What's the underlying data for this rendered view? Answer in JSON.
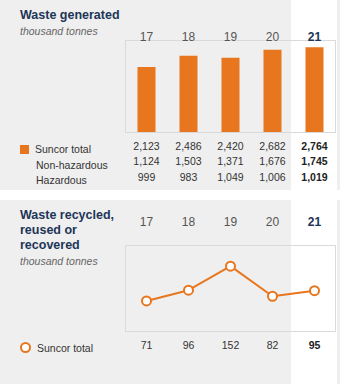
{
  "chart_data": [
    {
      "type": "bar",
      "title": "Waste generated",
      "subtitle": "thousand tonnes",
      "categories": [
        "17",
        "18",
        "19",
        "20",
        "21"
      ],
      "series": [
        {
          "name": "Suncor total",
          "color": "#e8761e",
          "values": [
            2123,
            2486,
            2420,
            2682,
            2764
          ],
          "value_labels": [
            "2,123",
            "2,486",
            "2,420",
            "2,682",
            "2,764"
          ]
        },
        {
          "name": "Non-hazardous",
          "type": "table",
          "values": [
            1124,
            1503,
            1371,
            1676,
            1745
          ],
          "value_labels": [
            "1,124",
            "1,503",
            "1,371",
            "1,676",
            "1,745"
          ]
        },
        {
          "name": "Hazardous",
          "type": "table",
          "values": [
            999,
            983,
            1049,
            1006,
            1019
          ],
          "value_labels": [
            "999",
            "983",
            "1,049",
            "1,006",
            "1,019"
          ]
        }
      ],
      "ylim": [
        0,
        3000
      ],
      "tick_labels": "x",
      "grid": false,
      "data_labels": true,
      "legend": "bottom-left"
    },
    {
      "type": "line",
      "title": "Waste recycled, reused or recovered",
      "subtitle": "thousand tonnes",
      "categories": [
        "17",
        "18",
        "19",
        "20",
        "21"
      ],
      "series": [
        {
          "name": "Suncor total",
          "color": "#e8761e",
          "values": [
            71,
            96,
            152,
            82,
            95
          ],
          "marker": "circle",
          "line_style": "solid"
        }
      ],
      "ylim": [
        0,
        200
      ],
      "tick_labels": "x",
      "grid": false,
      "data_labels": true,
      "legend": "bottom-left"
    }
  ]
}
